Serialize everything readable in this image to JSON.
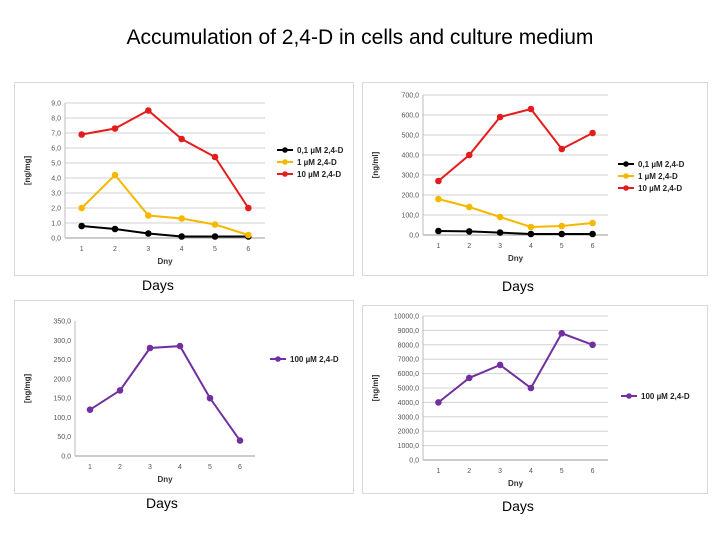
{
  "page": {
    "title": "Accumulation of 2,4-D in cells and culture medium"
  },
  "colors": {
    "black": "#000000",
    "yellow": "#F5B800",
    "red": "#E31D1D",
    "purple": "#7030A0",
    "grid": "#d0d0d0"
  },
  "chart_data": [
    {
      "type": "line",
      "caption": "Days",
      "xlabel": "Dny",
      "ylabel": "[ng/mg]",
      "x": [
        "1",
        "2",
        "3",
        "4",
        "5",
        "6"
      ],
      "yticks": [
        "0,0",
        "1,0",
        "2,0",
        "3,0",
        "4,0",
        "5,0",
        "6,0",
        "7,0",
        "8,0",
        "9,0"
      ],
      "ylim": [
        0,
        9
      ],
      "grid": true,
      "legend": "right",
      "series": [
        {
          "name": "0,1 µM 2,4-D",
          "color": "#000000",
          "values": [
            0.8,
            0.6,
            0.3,
            0.1,
            0.1,
            0.1
          ]
        },
        {
          "name": "1 µM 2,4-D",
          "color": "#F5B800",
          "values": [
            2.0,
            4.2,
            1.5,
            1.3,
            0.9,
            0.2
          ]
        },
        {
          "name": "10 µM 2,4-D",
          "color": "#E31D1D",
          "values": [
            6.9,
            7.3,
            8.5,
            6.6,
            5.4,
            2.0
          ]
        }
      ]
    },
    {
      "type": "line",
      "caption": "Days",
      "xlabel": "Dny",
      "ylabel": "[ng/ml]",
      "x": [
        "1",
        "2",
        "3",
        "4",
        "5",
        "6"
      ],
      "yticks": [
        "0,0",
        "100,0",
        "200,0",
        "300,0",
        "400,0",
        "500,0",
        "600,0",
        "700,0"
      ],
      "ylim": [
        0,
        700
      ],
      "grid": true,
      "legend": "right",
      "series": [
        {
          "name": "0,1 µM 2,4-D",
          "color": "#000000",
          "values": [
            20,
            18,
            12,
            5,
            5,
            5
          ]
        },
        {
          "name": "1 µM 2,4-D",
          "color": "#F5B800",
          "values": [
            180,
            140,
            90,
            40,
            45,
            60
          ]
        },
        {
          "name": "10 µM 2,4-D",
          "color": "#E31D1D",
          "values": [
            270,
            400,
            590,
            630,
            430,
            510
          ]
        }
      ]
    },
    {
      "type": "line",
      "caption": "Days",
      "xlabel": "Dny",
      "ylabel": "[ng/mg]",
      "x": [
        "1",
        "2",
        "3",
        "4",
        "5",
        "6"
      ],
      "yticks": [
        "0,0",
        "50,0",
        "100,0",
        "150,0",
        "200,0",
        "250,0",
        "300,0",
        "350,0"
      ],
      "ylim": [
        0,
        350
      ],
      "grid": false,
      "legend": "right",
      "series": [
        {
          "name": "100 µM 2,4-D",
          "color": "#7030A0",
          "values": [
            120,
            170,
            280,
            285,
            150,
            40
          ]
        }
      ]
    },
    {
      "type": "line",
      "caption": "Days",
      "xlabel": "Dny",
      "ylabel": "[ng/ml]",
      "x": [
        "1",
        "2",
        "3",
        "4",
        "5",
        "6"
      ],
      "yticks": [
        "0,0",
        "1000,0",
        "2000,0",
        "3000,0",
        "4000,0",
        "5000,0",
        "6000,0",
        "7000,0",
        "8000,0",
        "9000,0",
        "10000,0"
      ],
      "ylim": [
        0,
        10000
      ],
      "grid": true,
      "legend": "right",
      "series": [
        {
          "name": "100 µM 2,4-D",
          "color": "#7030A0",
          "values": [
            4000,
            5700,
            6600,
            5000,
            8800,
            8000
          ]
        }
      ]
    }
  ]
}
